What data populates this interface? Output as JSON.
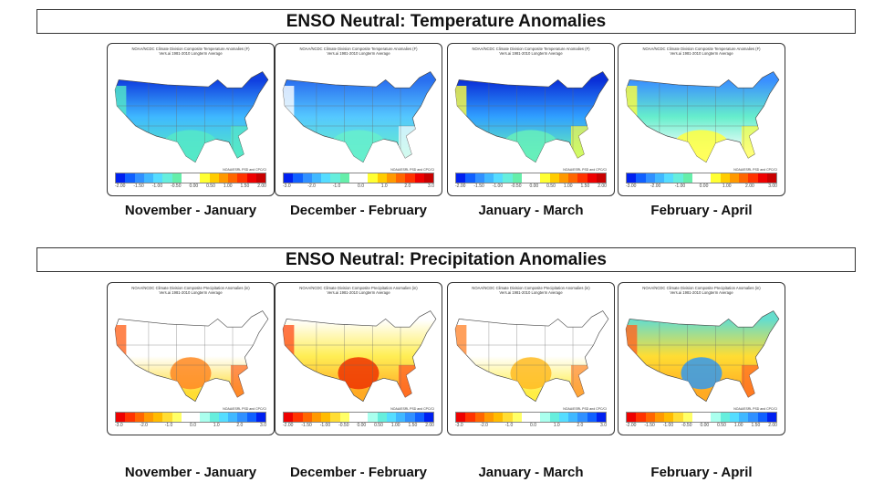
{
  "sections": [
    {
      "title": "ENSO Neutral: Temperature Anomalies",
      "header_line1": "NOAA/NCDC Climate Division Composite Temperature Anomalies (F)",
      "header_line2": "Vers.ai 1981-2010 Longterm Average",
      "credit": "NOAA/ESRL PSD and CPC/CI",
      "panels": [
        {
          "label": "November - January",
          "ticks": [
            "-2.00",
            "-1.50",
            "-1.00",
            "-0.50",
            "0.00",
            "0.50",
            "1.00",
            "1.50",
            "2.00"
          ],
          "north": "#1040e0",
          "mid": "#3fb8ff",
          "south": "#55e8c8",
          "hot": "#55e8c8",
          "edge": "#55e8c8"
        },
        {
          "label": "December - February",
          "ticks": [
            "-3.0",
            "-2.0",
            "-1.0",
            "0.0",
            "1.0",
            "2.0",
            "3.0"
          ],
          "north": "#2a70f0",
          "mid": "#55c8ff",
          "south": "#66eecc",
          "hot": "#66eecc",
          "edge": "#ffffff"
        },
        {
          "label": "January - March",
          "ticks": [
            "-2.00",
            "-1.50",
            "-1.00",
            "-0.50",
            "0.00",
            "0.50",
            "1.00",
            "1.50",
            "2.00"
          ],
          "north": "#0a30d8",
          "mid": "#30a0ff",
          "south": "#66eebb",
          "hot": "#66eebb",
          "edge": "#ffff40"
        },
        {
          "label": "February - April",
          "ticks": [
            "-3.00",
            "-2.00",
            "-1.00",
            "0.00",
            "1.00",
            "2.00",
            "3.00"
          ],
          "north": "#3a90ff",
          "mid": "#66eecc",
          "south": "#ffffff",
          "hot": "#ffff40",
          "edge": "#ffff40"
        }
      ],
      "colorbar": [
        "#0020f0",
        "#1060ff",
        "#3090ff",
        "#40b8ff",
        "#55dcff",
        "#66eedd",
        "#66eeaa",
        "#ffffff",
        "#ffffff",
        "#ffff33",
        "#ffcc00",
        "#ff9900",
        "#ff6600",
        "#ff3300",
        "#ee0000",
        "#c80000"
      ]
    },
    {
      "title": "ENSO Neutral: Precipitation Anomalies",
      "header_line1": "NOAA/NCDC Climate Division Composite Precipitation Anomalies (in)",
      "header_line2": "Vers.ai 1981-2010 Longterm Average",
      "credit": "NOAA/ESRL PSD and CPC/CI",
      "panels": [
        {
          "label": "November - January",
          "ticks": [
            "-3.0",
            "-2.0",
            "-1.0",
            "0.0",
            "1.0",
            "2.0",
            "3.0"
          ],
          "north": "#ffffff",
          "mid": "#ffffff",
          "south": "#ffdd33",
          "hot": "#ff8822",
          "edge": "#ff6622"
        },
        {
          "label": "December - February",
          "ticks": [
            "-2.00",
            "-1.50",
            "-1.00",
            "-0.50",
            "0.00",
            "0.50",
            "1.00",
            "1.50",
            "2.00"
          ],
          "north": "#ffffff",
          "mid": "#ffee55",
          "south": "#ffaa22",
          "hot": "#ee3300",
          "edge": "#ff5522"
        },
        {
          "label": "January - March",
          "ticks": [
            "-3.0",
            "-2.0",
            "-1.0",
            "0.0",
            "1.0",
            "2.0",
            "3.0"
          ],
          "north": "#ffffff",
          "mid": "#ffffff",
          "south": "#ffee44",
          "hot": "#ffbb22",
          "edge": "#ff8833"
        },
        {
          "label": "February - April",
          "ticks": [
            "-2.00",
            "-1.50",
            "-1.00",
            "-0.50",
            "0.00",
            "0.50",
            "1.00",
            "1.50",
            "2.00"
          ],
          "north": "#66ddcc",
          "mid": "#ffdd33",
          "south": "#ffaa22",
          "hot": "#3399ee",
          "edge": "#ff6622"
        }
      ],
      "colorbar": [
        "#ee0000",
        "#ff3300",
        "#ff6600",
        "#ff9900",
        "#ffbb00",
        "#ffdd33",
        "#ffff66",
        "#ffffff",
        "#ffffff",
        "#aaffee",
        "#66eedd",
        "#55ddff",
        "#40b8ff",
        "#3090ff",
        "#1060ff",
        "#0020f0"
      ]
    }
  ]
}
